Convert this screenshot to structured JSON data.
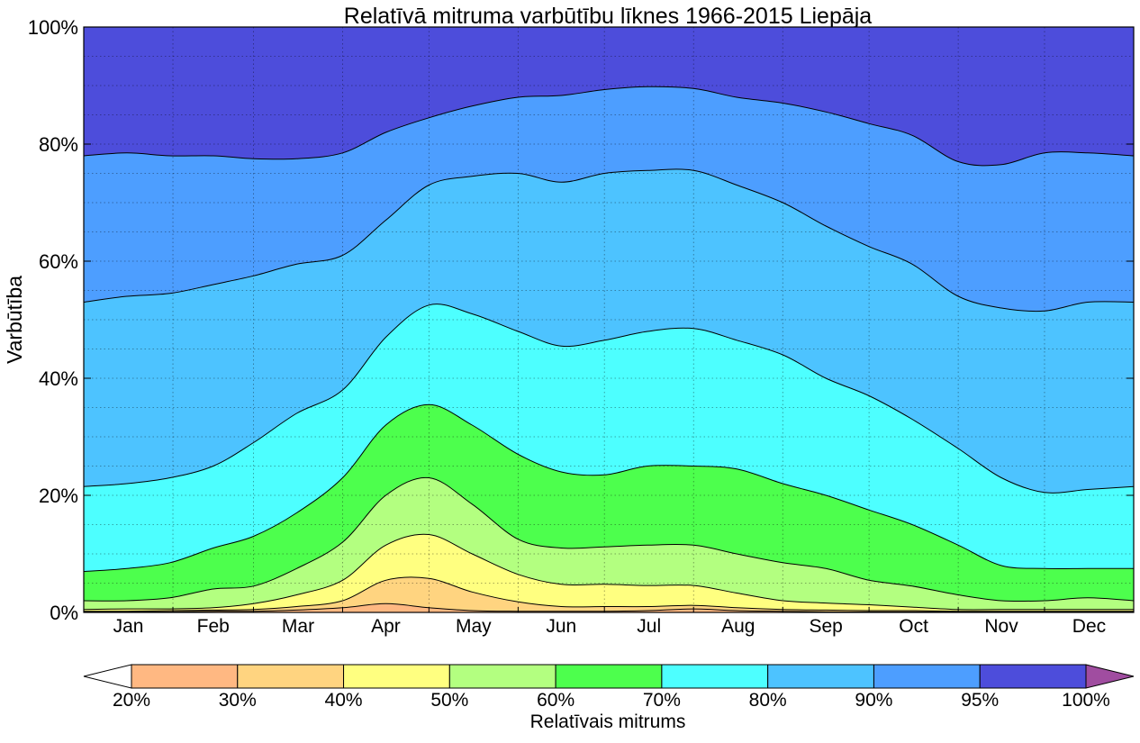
{
  "chart_data": {
    "type": "area",
    "title": "Relatīvā mitruma varbūtību līknes 1966-2015 Liepāja",
    "ylabel": "Varbūtība",
    "xlabel": "",
    "x_ticks": [
      "Jan",
      "Feb",
      "Mar",
      "Apr",
      "May",
      "Jun",
      "Jul",
      "Aug",
      "Sep",
      "Oct",
      "Nov",
      "Dec"
    ],
    "x_range": [
      1,
      366
    ],
    "y_ticks": [
      "0%",
      "20%",
      "40%",
      "60%",
      "80%",
      "100%"
    ],
    "y_range": [
      0,
      100
    ],
    "grid": true,
    "x": [
      1,
      16,
      31,
      46,
      60,
      75,
      91,
      106,
      121,
      136,
      152,
      167,
      182,
      197,
      213,
      228,
      244,
      259,
      274,
      289,
      305,
      320,
      335,
      350,
      366
    ],
    "series": [
      {
        "threshold": "20%",
        "values": [
          0.1,
          0.1,
          0.1,
          0.2,
          0.2,
          0.4,
          0.8,
          1.5,
          0.8,
          0.3,
          0.2,
          0.2,
          0.2,
          0.3,
          0.6,
          0.3,
          0.2,
          0.1,
          0.1,
          0.1,
          0.1,
          0.1,
          0.1,
          0.1,
          0.1
        ]
      },
      {
        "threshold": "30%",
        "values": [
          0.2,
          0.2,
          0.3,
          0.4,
          0.5,
          1.0,
          2.0,
          5.5,
          5.8,
          3.5,
          1.8,
          1.0,
          1.0,
          1.0,
          1.2,
          0.8,
          0.5,
          0.4,
          0.3,
          0.3,
          0.2,
          0.2,
          0.2,
          0.2,
          0.2
        ]
      },
      {
        "threshold": "40%",
        "values": [
          0.5,
          0.6,
          0.6,
          0.8,
          1.5,
          3.0,
          5.5,
          11.5,
          13.3,
          10.0,
          6.5,
          4.8,
          4.8,
          4.6,
          4.6,
          3.3,
          2.0,
          1.6,
          1.3,
          0.9,
          0.5,
          0.5,
          0.5,
          0.5,
          0.5
        ]
      },
      {
        "threshold": "50%",
        "values": [
          2.0,
          2.0,
          2.5,
          4.0,
          4.5,
          7.5,
          12.0,
          20.0,
          23.0,
          18.5,
          12.5,
          11.0,
          11.2,
          11.5,
          11.5,
          10.0,
          8.5,
          7.5,
          5.5,
          4.5,
          3.0,
          2.0,
          2.0,
          2.5,
          2.0
        ]
      },
      {
        "threshold": "60%",
        "values": [
          7.0,
          7.5,
          8.5,
          11.0,
          13.0,
          17.0,
          23.0,
          32.0,
          35.5,
          32.0,
          27.0,
          24.0,
          23.5,
          25.0,
          25.0,
          24.5,
          22.0,
          20.0,
          17.5,
          15.0,
          11.5,
          8.0,
          7.5,
          7.5,
          7.5
        ]
      },
      {
        "threshold": "70%",
        "values": [
          21.5,
          22.0,
          23.0,
          25.0,
          29.0,
          34.0,
          38.0,
          47.0,
          52.5,
          51.0,
          48.0,
          45.5,
          46.5,
          48.0,
          48.5,
          46.5,
          44.0,
          40.0,
          37.0,
          33.0,
          28.0,
          23.0,
          20.5,
          21.0,
          21.5
        ]
      },
      {
        "threshold": "80%",
        "values": [
          53.0,
          54.0,
          54.5,
          56.0,
          57.5,
          59.5,
          61.0,
          67.0,
          73.0,
          74.5,
          75.0,
          73.5,
          75.0,
          75.5,
          75.5,
          73.0,
          70.0,
          66.0,
          62.5,
          59.5,
          54.0,
          52.0,
          51.5,
          53.0,
          53.0
        ]
      },
      {
        "threshold": "90%",
        "values": [
          78.0,
          78.5,
          78.0,
          78.0,
          77.5,
          77.5,
          78.5,
          82.0,
          84.5,
          86.5,
          88.0,
          88.3,
          89.3,
          89.8,
          89.5,
          88.0,
          87.0,
          85.5,
          83.5,
          81.5,
          77.0,
          76.5,
          78.5,
          78.5,
          78.0
        ]
      }
    ],
    "colorbar": {
      "label": "Relatīvais mitrums",
      "ticks": [
        "20%",
        "30%",
        "40%",
        "50%",
        "60%",
        "70%",
        "80%",
        "90%",
        "95%",
        "100%"
      ],
      "colors": [
        "#ffffff",
        "#ffb882",
        "#ffd480",
        "#ffff80",
        "#b3ff80",
        "#4dff4d",
        "#4dffff",
        "#4dc3ff",
        "#4d9eff",
        "#4d4ddb",
        "#a04da0"
      ]
    },
    "band_colors": [
      "#ffb882",
      "#ffd480",
      "#ffff80",
      "#b3ff80",
      "#4dff4d",
      "#4dffff",
      "#4dc3ff",
      "#4d9eff",
      "#4d4ddb"
    ]
  }
}
